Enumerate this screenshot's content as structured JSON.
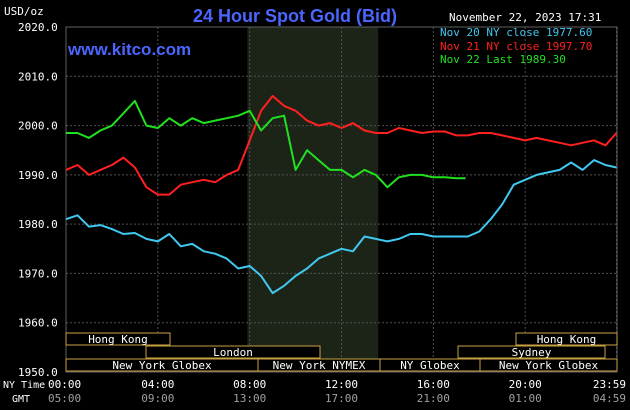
{
  "header": {
    "title": "24 Hour Spot Gold (Bid)",
    "unit": "USD/oz",
    "date": "November 22, 2023 17:31",
    "site": "www.kitco.com"
  },
  "legend": [
    {
      "label": "Nov 20 NY close 1977.60",
      "color": "#40c8f0"
    },
    {
      "label": "Nov 21 NY close 1997.70",
      "color": "#ff2020"
    },
    {
      "label": "Nov 22 Last 1989.30",
      "color": "#20e020"
    }
  ],
  "markets": {
    "row1": [
      {
        "label": "Hong Kong"
      },
      {
        "label": "Hong Kong"
      }
    ],
    "row2": [
      {
        "label": "London"
      },
      {
        "label": "Sydney"
      }
    ],
    "row3": [
      {
        "label": "New York Globex"
      },
      {
        "label": "New York NYMEX"
      },
      {
        "label": "NY Globex"
      },
      {
        "label": "New York Globex"
      }
    ]
  },
  "axis_row_labels": {
    "ny": "NY Time",
    "gmt": "GMT"
  },
  "chart_data": {
    "type": "line",
    "ylim": [
      1950,
      2020
    ],
    "yticks": [
      "2020.0",
      "2010.0",
      "2000.0",
      "1990.0",
      "1980.0",
      "1970.0",
      "1960.0",
      "1950.0"
    ],
    "xticks_ny": [
      "00:00",
      "04:00",
      "08:00",
      "12:00",
      "16:00",
      "20:00",
      "23:59"
    ],
    "xticks_gmt": [
      "05:00",
      "09:00",
      "13:00",
      "17:00",
      "21:00",
      "01:00",
      "04:59"
    ],
    "grid": true,
    "series": [
      {
        "name": "Nov 20 NY close 1977.60",
        "color": "#40c8f0",
        "x": [
          0,
          0.5,
          1,
          1.5,
          2,
          2.5,
          3,
          3.5,
          4,
          4.5,
          5,
          5.5,
          6,
          6.5,
          7,
          7.5,
          8,
          8.5,
          9,
          9.5,
          10,
          10.5,
          11,
          11.5,
          12,
          12.5,
          13,
          13.5,
          14,
          14.5,
          15,
          15.5,
          16,
          16.5,
          17,
          17.5,
          18,
          18.5,
          19,
          19.5,
          20,
          20.5,
          21,
          21.5,
          22,
          22.5,
          23,
          23.5,
          23.98
        ],
        "y": [
          1981,
          1981.8,
          1979.5,
          1979.8,
          1979,
          1978,
          1978.2,
          1977,
          1976.5,
          1978,
          1975.5,
          1976,
          1974.5,
          1974,
          1973,
          1971,
          1971.5,
          1969.5,
          1966,
          1967.5,
          1969.5,
          1971,
          1973,
          1974,
          1975,
          1974.5,
          1977.5,
          1977,
          1976.5,
          1977,
          1978,
          1978,
          1977.5,
          1977.5,
          1977.5,
          1977.5,
          1978.5,
          1981,
          1984,
          1988,
          1989,
          1990,
          1990.5,
          1991,
          1992.5,
          1991,
          1993,
          1992,
          1991.5
        ]
      },
      {
        "name": "Nov 21 NY close 1997.70",
        "color": "#ff2020",
        "x": [
          0,
          0.5,
          1,
          1.5,
          2,
          2.5,
          3,
          3.5,
          4,
          4.5,
          5,
          5.5,
          6,
          6.5,
          7,
          7.5,
          8,
          8.5,
          9,
          9.5,
          10,
          10.5,
          11,
          11.5,
          12,
          12.5,
          13,
          13.5,
          14,
          14.5,
          15,
          15.5,
          16,
          16.5,
          17,
          17.5,
          18,
          18.5,
          19,
          19.5,
          20,
          20.5,
          21,
          21.5,
          22,
          22.5,
          23,
          23.5,
          23.98
        ],
        "y": [
          1991,
          1992,
          1990,
          1991,
          1992,
          1993.5,
          1991.5,
          1987.5,
          1986,
          1986,
          1988,
          1988.5,
          1989,
          1988.5,
          1990,
          1991,
          1997,
          2003,
          2006,
          2004,
          2003,
          2001,
          2000,
          2000.5,
          1999.5,
          2000.5,
          1999,
          1998.5,
          1998.5,
          1999.5,
          1999,
          1998.5,
          1998.8,
          1998.8,
          1998,
          1998,
          1998.5,
          1998.5,
          1998,
          1997.5,
          1997,
          1997.5,
          1997,
          1996.5,
          1996,
          1996.5,
          1997,
          1996,
          1998.5
        ]
      },
      {
        "name": "Nov 22 Last 1989.30",
        "color": "#20e020",
        "x": [
          0,
          0.5,
          1,
          1.5,
          2,
          2.5,
          3,
          3.5,
          4,
          4.5,
          5,
          5.5,
          6,
          6.5,
          7,
          7.5,
          8,
          8.5,
          9,
          9.5,
          10,
          10.5,
          11,
          11.5,
          12,
          12.5,
          13,
          13.5,
          14,
          14.5,
          15,
          15.5,
          16,
          16.5,
          17,
          17.4
        ],
        "y": [
          1998.5,
          1998.5,
          1997.5,
          1999,
          2000,
          2002.5,
          2005,
          2000,
          1999.5,
          2001.5,
          2000,
          2001.5,
          2000.5,
          2001,
          2001.5,
          2002,
          2003,
          1999,
          2001.5,
          2002,
          1991,
          1995,
          1993,
          1991,
          1991,
          1989.5,
          1991,
          1990,
          1987.5,
          1989.5,
          1990,
          1990,
          1989.5,
          1989.5,
          1989.3,
          1989.3
        ]
      }
    ]
  }
}
